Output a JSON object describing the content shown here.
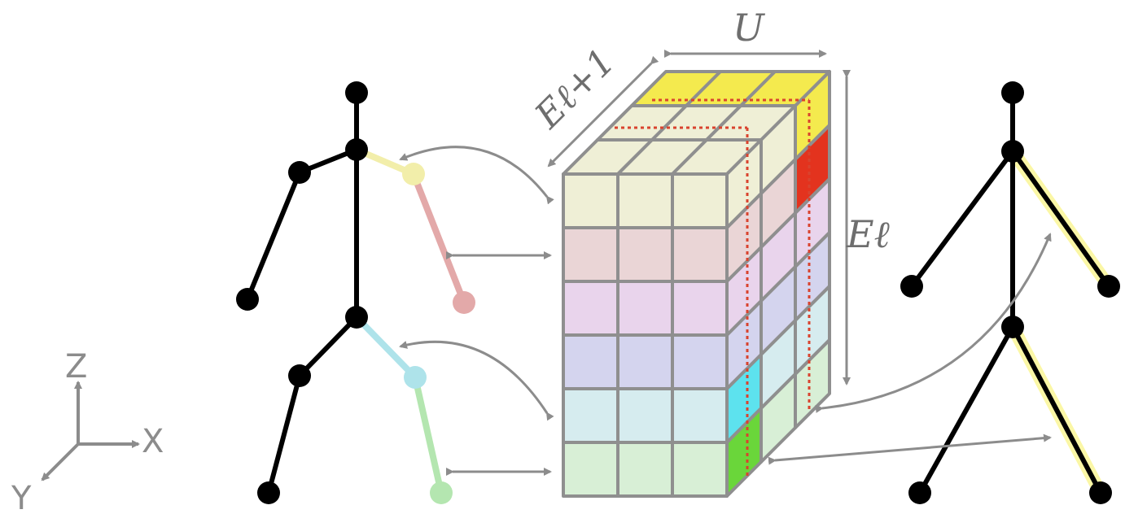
{
  "diagram": {
    "labels": {
      "width": "U",
      "depth": "Eℓ+1",
      "height": "Eℓ"
    },
    "axes": {
      "x": "X",
      "y": "Y",
      "z": "Z"
    },
    "colors": {
      "gray": "#8c8c8c",
      "cube_edge": "#8f8f8f",
      "joint_black": "#000000",
      "left_arm_upper": "#f2eeaa",
      "left_arm_lower": "#e3a9a9",
      "left_leg_upper": "#aee3ea",
      "left_leg_lower": "#b4e6b0",
      "row_colors": [
        "#efefd6",
        "#ead5d6",
        "#e9d4ec",
        "#d4d4ee",
        "#d6ecef",
        "#d8efd6"
      ],
      "top_highlight": "#f4ea4e",
      "highlight_red": "#e3331e",
      "highlight_cyan": "#5de2ee",
      "highlight_green": "#6ad63a",
      "dotted_red": "#d9432e",
      "glow_yellow": "#fbf7a6"
    }
  }
}
